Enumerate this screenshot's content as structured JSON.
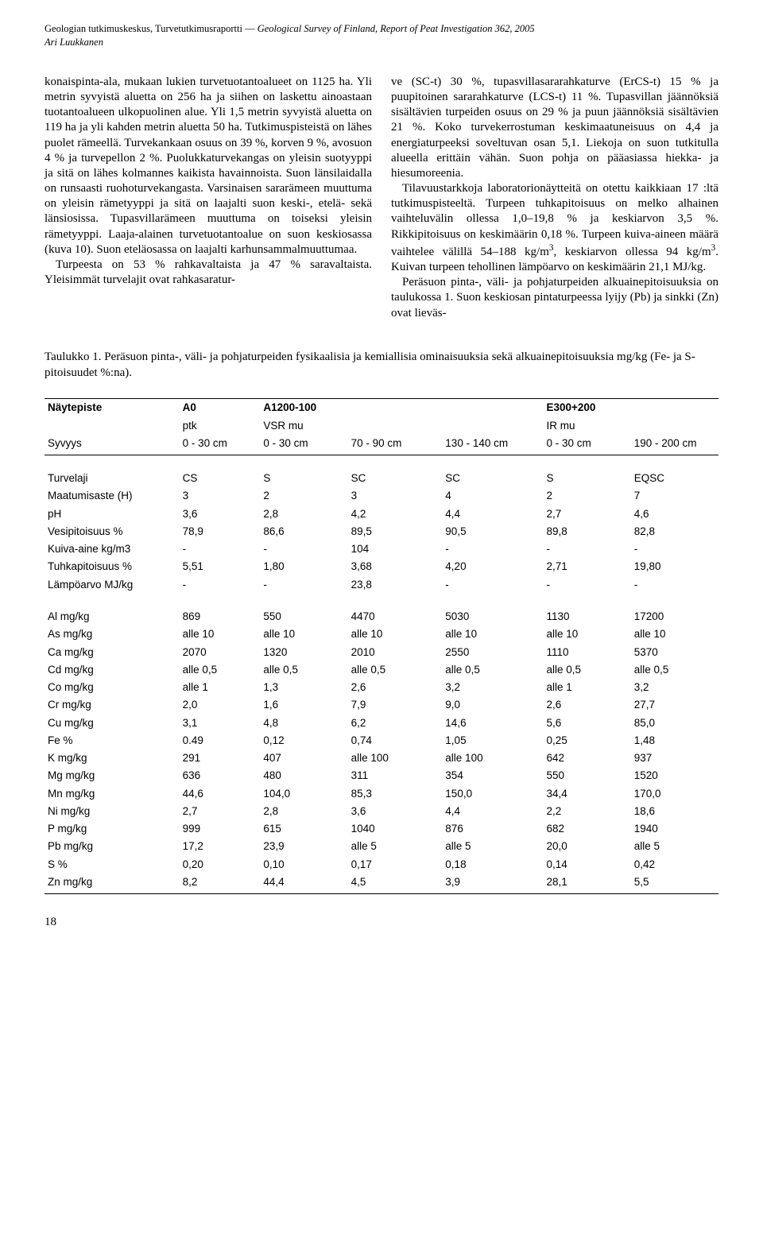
{
  "header": {
    "line1a": "Geologian tutkimuskeskus, Turvetutkimusraportti — ",
    "line1b_italic": "Geological Survey of Finland, Report of Peat Investigation 362, 2005",
    "line2_italic": "Ari Luukkanen"
  },
  "body": {
    "left": {
      "p1": "konaispinta-ala, mukaan lukien turvetuotantoalueet on 1125 ha. Yli metrin syvyistä aluetta on 256 ha ja siihen on laskettu ainoastaan tuotantoalueen ulkopuolinen alue. Yli 1,5 metrin syvyistä aluetta on 119 ha ja yli kahden metrin aluetta 50 ha. Tutkimuspisteistä on lähes puolet rämeellä. Turvekankaan osuus on 39 %, korven 9 %, avosuon 4 % ja turvepellon 2 %. Puolukkaturvekangas on yleisin suotyyppi ja sitä on lähes kolmannes kaikista havainnoista. Suon länsilaidalla on runsaasti ruohoturvekangasta. Varsinaisen sararämeen muuttuma on yleisin rämetyyppi ja sitä on laajalti suon keski-, etelä- sekä länsiosissa. Tupasvillarämeen muuttuma on toiseksi yleisin rämetyyppi. Laaja-alainen turvetuotantoalue on suon keskiosassa (kuva 10). Suon eteläosassa on laajalti karhunsammalmuuttumaa.",
      "p2": "Turpeesta on 53 % rahkavaltaista ja 47 % saravaltaista. Yleisimmät turvelajit ovat rahkasaratur-"
    },
    "right": {
      "p1": "ve (SC-t) 30 %, tupasvillasararahkaturve (ErCS-t) 15 % ja puupitoinen sararahkaturve (LCS-t) 11 %. Tupasvillan jäännöksiä sisältävien turpeiden osuus on 29 % ja puun jäännöksiä sisältävien 21 %. Koko turvekerrostuman keskimaatuneisuus on 4,4 ja energiaturpeeksi soveltuvan osan 5,1. Liekoja on suon tutkitulla alueella erittäin vähän. Suon pohja on pääasiassa hiekka- ja hiesumoreenia.",
      "p2a": "Tilavuustarkkoja laboratorionäytteitä on otettu kaikkiaan 17 :ltä tutkimuspisteeltä. Turpeen tuhkapitoisuus on melko alhainen vaihteluvälin ollessa 1,0–19,8 % ja keskiarvon 3,5 %. Rikkipitoisuus on keskimäärin 0,18 %. Turpeen kuiva-aineen määrä vaihtelee välillä 54–188 kg/m",
      "p2b": ", keskiarvon ollessa 94 kg/m",
      "p2c": ". Kuivan turpeen tehollinen lämpöarvo on keskimäärin 21,1 MJ/kg.",
      "p3": "Peräsuon pinta-, väli- ja pohjaturpeiden alkuainepitoisuuksia on taulukossa 1. Suon keskiosan pintaturpeessa lyijy (Pb) ja sinkki (Zn) ovat lieväs-"
    }
  },
  "table": {
    "caption": "Taulukko 1. Peräsuon pinta-, väli- ja pohjaturpeiden fysikaalisia ja kemiallisia ominaisuuksia sekä alkuainepitoisuuksia mg/kg (Fe- ja S- pitoisuudet %:na).",
    "head": {
      "r1": [
        "Näytepiste",
        "A0",
        "A1200-100",
        "",
        "",
        "E300+200",
        ""
      ],
      "r2": [
        "",
        "ptk",
        "VSR mu",
        "",
        "",
        "IR mu",
        ""
      ],
      "r3": [
        "Syvyys",
        "0 - 30 cm",
        "0 - 30 cm",
        "70 - 90 cm",
        "130 - 140 cm",
        "0 - 30 cm",
        "190 - 200 cm"
      ]
    },
    "rows_top": [
      [
        "Turvelaji",
        "CS",
        "S",
        "SC",
        "SC",
        "S",
        "EQSC"
      ],
      [
        "Maatumisaste (H)",
        "3",
        "2",
        "3",
        "4",
        "2",
        "7"
      ],
      [
        "pH",
        "3,6",
        "2,8",
        "4,2",
        "4,4",
        "2,7",
        "4,6"
      ],
      [
        "Vesipitoisuus %",
        "78,9",
        "86,6",
        "89,5",
        "90,5",
        "89,8",
        "82,8"
      ],
      [
        "Kuiva-aine kg/m3",
        "-",
        "-",
        "104",
        "-",
        "-",
        "-"
      ],
      [
        "Tuhkapitoisuus %",
        "5,51",
        "1,80",
        "3,68",
        "4,20",
        "2,71",
        "19,80"
      ],
      [
        "Lämpöarvo MJ/kg",
        "-",
        "-",
        "23,8",
        "-",
        "-",
        "-"
      ]
    ],
    "rows_bottom": [
      [
        "Al mg/kg",
        "869",
        "550",
        "4470",
        "5030",
        "1130",
        "17200"
      ],
      [
        "As mg/kg",
        "alle 10",
        "alle 10",
        "alle 10",
        "alle 10",
        "alle 10",
        "alle 10"
      ],
      [
        "Ca mg/kg",
        "2070",
        "1320",
        "2010",
        "2550",
        "1110",
        "5370"
      ],
      [
        "Cd mg/kg",
        "alle 0,5",
        "alle 0,5",
        "alle 0,5",
        "alle 0,5",
        "alle 0,5",
        "alle 0,5"
      ],
      [
        "Co mg/kg",
        "alle 1",
        "1,3",
        "2,6",
        "3,2",
        "alle 1",
        "3,2"
      ],
      [
        "Cr mg/kg",
        "2,0",
        "1,6",
        "7,9",
        "9,0",
        "2,6",
        "27,7"
      ],
      [
        "Cu mg/kg",
        "3,1",
        "4,8",
        "6,2",
        "14,6",
        "5,6",
        "85,0"
      ],
      [
        "Fe %",
        "0.49",
        "0,12",
        "0,74",
        "1,05",
        "0,25",
        "1,48"
      ],
      [
        "K mg/kg",
        "291",
        "407",
        "alle 100",
        "alle 100",
        "642",
        "937"
      ],
      [
        "Mg mg/kg",
        "636",
        "480",
        "311",
        "354",
        "550",
        "1520"
      ],
      [
        "Mn mg/kg",
        "44,6",
        "104,0",
        "85,3",
        "150,0",
        "34,4",
        "170,0"
      ],
      [
        "Ni mg/kg",
        "2,7",
        "2,8",
        "3,6",
        "4,4",
        "2,2",
        "18,6"
      ],
      [
        "P mg/kg",
        "999",
        "615",
        "1040",
        "876",
        "682",
        "1940"
      ],
      [
        "Pb mg/kg",
        "17,2",
        "23,9",
        "alle 5",
        "alle 5",
        "20,0",
        "alle 5"
      ],
      [
        "S %",
        "0,20",
        "0,10",
        "0,17",
        "0,18",
        "0,14",
        "0,42"
      ],
      [
        "Zn mg/kg",
        "8,2",
        "44,4",
        "4,5",
        "3,9",
        "28,1",
        "5,5"
      ]
    ]
  },
  "page_number": "18"
}
